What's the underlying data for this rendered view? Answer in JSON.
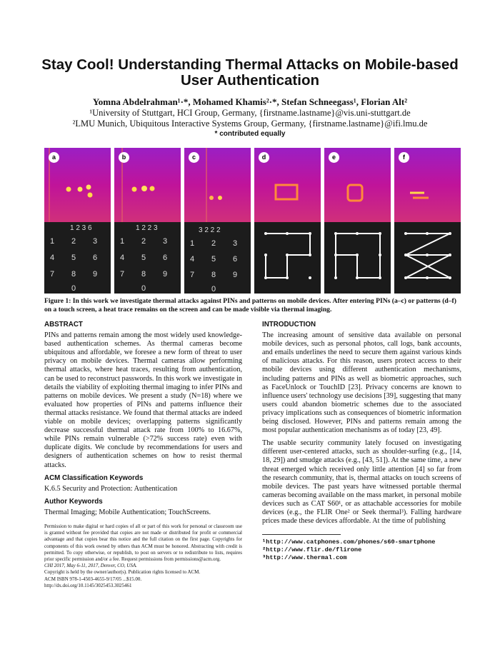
{
  "title": "Stay Cool! Understanding Thermal Attacks on Mobile-based User Authentication",
  "authors": "Yomna Abdelrahman¹·*, Mohamed Khamis²·*, Stefan Schneegass¹, Florian Alt²",
  "affiliation1": "¹University of Stuttgart, HCI Group, Germany, {firstname.lastname}@vis.uni-stuttgart.de",
  "affiliation2": "²LMU Munich, Ubiquitous Interactive Systems Group, Germany, {firstname.lastname}@ifi.lmu.de",
  "contributed": "* contributed equally",
  "figure": {
    "panels": [
      {
        "label": "a",
        "pin": "1 2 3 6"
      },
      {
        "label": "b",
        "pin": "1 2 2 3"
      },
      {
        "label": "c",
        "pin": "3 2 2 2"
      },
      {
        "label": "d"
      },
      {
        "label": "e"
      },
      {
        "label": "f"
      }
    ],
    "keypad": [
      "1",
      "2",
      "3",
      "4",
      "5",
      "6",
      "7",
      "8",
      "9",
      "0"
    ],
    "caption": "Figure 1: In this work we investigate thermal attacks against PINs and patterns on mobile devices. After entering PINs (a–c) or patterns (d–f) on a touch screen, a heat trace remains on the screen and can be made visible via thermal imaging."
  },
  "abstract": {
    "heading": "ABSTRACT",
    "text": "PINs and patterns remain among the most widely used knowledge-based authentication schemes. As thermal cameras become ubiquitous and affordable, we foresee a new form of threat to user privacy on mobile devices. Thermal cameras allow performing thermal attacks, where heat traces, resulting from authentication, can be used to reconstruct passwords. In this work we investigate in details the viability of exploiting thermal imaging to infer PINs and patterns on mobile devices. We present a study (N=18) where we evaluated how properties of PINs and patterns influence their thermal attacks resistance. We found that thermal attacks are indeed viable on mobile devices; overlapping patterns significantly decrease successful thermal attack rate from 100% to 16.67%, while PINs remain vulnerable (>72% success rate) even with duplicate digits. We conclude by recommendations for users and designers of authentication schemes on how to resist thermal attacks."
  },
  "acm": {
    "heading": "ACM Classification Keywords",
    "text": "K.6.5 Security and Protection: Authentication"
  },
  "keywords": {
    "heading": "Author Keywords",
    "text": "Thermal Imaging; Mobile Authentication; TouchScreens."
  },
  "permission": [
    "Permission to make digital or hard copies of all or part of this work for personal or classroom use is granted without fee provided that copies are not made or distributed for profit or commercial advantage and that copies bear this notice and the full citation on the first page. Copyrights for components of this work owned by others than ACM must be honored. Abstracting with credit is permitted. To copy otherwise, or republish, to post on servers or to redistribute to lists, requires prior specific permission and/or a fee. Request permissions from permissions@acm.org.",
    "CHI 2017, May 6-11, 2017, Denver, CO, USA.",
    "Copyright is held by the owner/author(s). Publication rights licensed to ACM.",
    "ACM ISBN 978-1-4503-4655-9/17/05 ...$15.00.",
    "http://dx.doi.org/10.1145/3025453.3025461"
  ],
  "intro": {
    "heading": "INTRODUCTION",
    "p1": "The increasing amount of sensitive data available on personal mobile devices, such as personal photos, call logs, bank accounts, and emails underlines the need to secure them against various kinds of malicious attacks. For this reason, users protect access to their mobile devices using different authentication mechanisms, including patterns and PINs as well as biometric approaches, such as FaceUnlock or TouchID [23]. Privacy concerns are known to influence users' technology use decisions [39], suggesting that many users could abandon biometric schemes due to the associated privacy implications such as consequences of biometric information being disclosed. However, PINs and patterns remain among the most popular authentication mechanisms as of today [23, 49].",
    "p2": "The usable security community lately focused on investigating different user-centered attacks, such as shoulder-surfing (e.g., [14, 18, 29]) and smudge attacks (e.g., [43, 51]). At the same time, a new threat emerged which received only little attention [4] so far from the research community, that is, thermal attacks on touch screens of mobile devices. The past years have witnessed portable thermal cameras becoming available on the mass market, in personal mobile devices such as CAT S60¹, or as attachable accessories for mobile devices (e.g., the FLIR One² or Seek thermal³). Falling hardware prices made these devices affordable. At the time of publishing"
  },
  "footnotes": [
    "¹http://www.catphones.com/phones/s60-smartphone",
    "²http://www.flir.de/flirone",
    "³http://www.thermal.com"
  ]
}
